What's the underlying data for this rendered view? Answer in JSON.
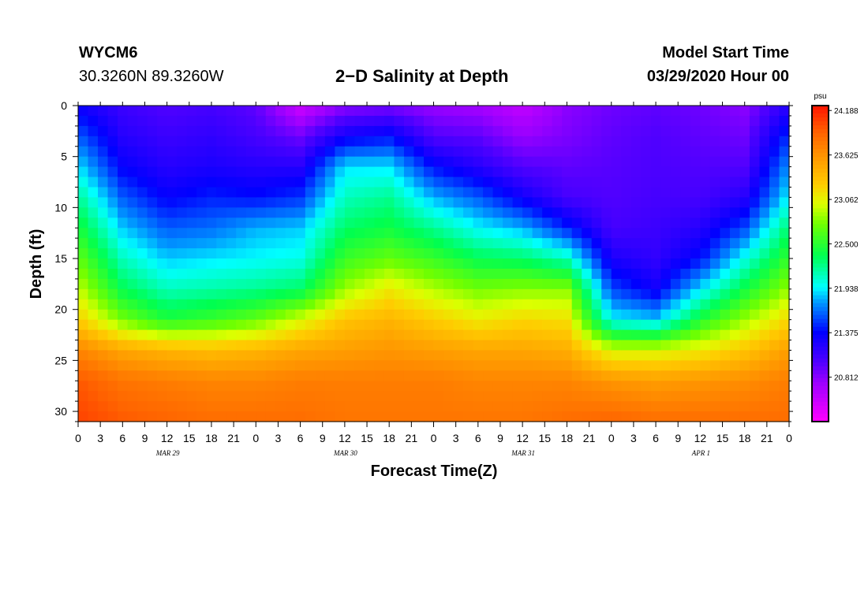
{
  "header": {
    "station_id": "WYCM6",
    "station_coords": "30.3260N 89.3260W",
    "title": "2−D Salinity at Depth",
    "start_label": "Model Start Time",
    "start_value": "03/29/2020 Hour 00"
  },
  "chart_data": {
    "type": "heatmap",
    "title": "2−D Salinity at Depth",
    "xlabel": "Forecast Time(Z)",
    "ylabel": "Depth (ft)",
    "units": "psu",
    "x_range_hours": [
      0,
      96
    ],
    "x_tick_step_hours": 3,
    "x_tick_labels": [
      "0",
      "3",
      "6",
      "9",
      "12",
      "15",
      "18",
      "21",
      "0",
      "3",
      "6",
      "9",
      "12",
      "15",
      "18",
      "21",
      "0",
      "3",
      "6",
      "9",
      "12",
      "15",
      "18",
      "21",
      "0",
      "3",
      "6",
      "9",
      "12",
      "15",
      "18",
      "21",
      "0"
    ],
    "date_labels": [
      {
        "text": "MAR 29",
        "hour": 12
      },
      {
        "text": "MAR 30",
        "hour": 36
      },
      {
        "text": "MAR 31",
        "hour": 60
      },
      {
        "text": "APR 1",
        "hour": 84
      }
    ],
    "y_range_ft": [
      0,
      31
    ],
    "y_ticks": [
      0,
      5,
      10,
      15,
      20,
      25,
      30
    ],
    "colorbar": {
      "label": "psu",
      "min": 20.25,
      "max": 24.25,
      "ticks": [
        "24.188",
        "23.625",
        "23.062",
        "22.500",
        "21.938",
        "21.375",
        "20.812"
      ],
      "stops": [
        {
          "v": 20.25,
          "c": "#ff00ff"
        },
        {
          "v": 20.75,
          "c": "#9a00ff"
        },
        {
          "v": 21.0,
          "c": "#5000ff"
        },
        {
          "v": 21.375,
          "c": "#0000ff"
        },
        {
          "v": 21.75,
          "c": "#0096ff"
        },
        {
          "v": 21.95,
          "c": "#00ffff"
        },
        {
          "v": 22.35,
          "c": "#00ff50"
        },
        {
          "v": 22.75,
          "c": "#70ff00"
        },
        {
          "v": 23.0,
          "c": "#ddff00"
        },
        {
          "v": 23.25,
          "c": "#ffcc00"
        },
        {
          "v": 23.6,
          "c": "#ff9600"
        },
        {
          "v": 23.9,
          "c": "#ff6400"
        },
        {
          "v": 24.25,
          "c": "#ff1400"
        }
      ]
    },
    "profile_times_hours": [
      0,
      6,
      12,
      18,
      24,
      30,
      36,
      42,
      48,
      54,
      60,
      66,
      72,
      78,
      84,
      90,
      96
    ],
    "profile_depths_ft": [
      0,
      3,
      6,
      9,
      12,
      15,
      18,
      21,
      24,
      27,
      31
    ],
    "salinity_psu": [
      [
        21.3,
        21.6,
        21.9,
        22.2,
        22.45,
        22.7,
        22.95,
        23.25,
        23.7,
        23.95,
        24.05
      ],
      [
        21.1,
        21.2,
        21.35,
        21.6,
        21.85,
        22.1,
        22.35,
        22.75,
        23.5,
        23.8,
        23.95
      ],
      [
        21.0,
        21.1,
        21.2,
        21.35,
        21.6,
        21.85,
        22.1,
        22.45,
        23.4,
        23.75,
        23.9
      ],
      [
        21.05,
        21.15,
        21.25,
        21.45,
        21.65,
        21.9,
        22.15,
        22.55,
        23.35,
        23.7,
        23.85
      ],
      [
        20.95,
        21.05,
        21.2,
        21.4,
        21.8,
        21.95,
        22.2,
        22.7,
        23.4,
        23.7,
        23.85
      ],
      [
        20.5,
        20.9,
        21.2,
        21.5,
        21.85,
        22.0,
        22.3,
        23.0,
        23.5,
        23.75,
        23.85
      ],
      [
        20.8,
        21.3,
        21.9,
        22.1,
        22.3,
        22.55,
        22.85,
        23.3,
        23.55,
        23.75,
        23.8
      ],
      [
        20.85,
        21.4,
        21.9,
        22.2,
        22.4,
        22.7,
        23.1,
        23.4,
        23.6,
        23.75,
        23.8
      ],
      [
        20.75,
        21.0,
        21.4,
        21.8,
        22.2,
        22.55,
        22.9,
        23.25,
        23.55,
        23.75,
        23.8
      ],
      [
        20.7,
        20.95,
        21.2,
        21.6,
        21.95,
        22.35,
        22.75,
        23.1,
        23.5,
        23.7,
        23.8
      ],
      [
        20.55,
        20.75,
        21.0,
        21.3,
        21.8,
        22.3,
        22.8,
        23.2,
        23.5,
        23.7,
        23.8
      ],
      [
        20.8,
        20.85,
        20.95,
        21.05,
        21.45,
        22.1,
        22.8,
        23.15,
        23.45,
        23.7,
        23.85
      ],
      [
        20.9,
        20.95,
        20.98,
        21.0,
        21.05,
        21.25,
        21.55,
        21.95,
        23.0,
        23.6,
        23.9
      ],
      [
        20.95,
        21.0,
        21.02,
        21.05,
        21.1,
        21.15,
        21.3,
        21.85,
        23.0,
        23.55,
        23.85
      ],
      [
        20.9,
        20.95,
        21.0,
        21.05,
        21.2,
        21.4,
        21.9,
        22.45,
        23.1,
        23.6,
        23.85
      ],
      [
        20.8,
        20.9,
        21.0,
        21.2,
        21.55,
        22.0,
        22.4,
        22.85,
        23.3,
        23.65,
        23.85
      ],
      [
        21.2,
        21.5,
        21.75,
        21.95,
        22.3,
        22.55,
        22.85,
        23.2,
        23.55,
        23.75,
        23.85
      ]
    ]
  }
}
